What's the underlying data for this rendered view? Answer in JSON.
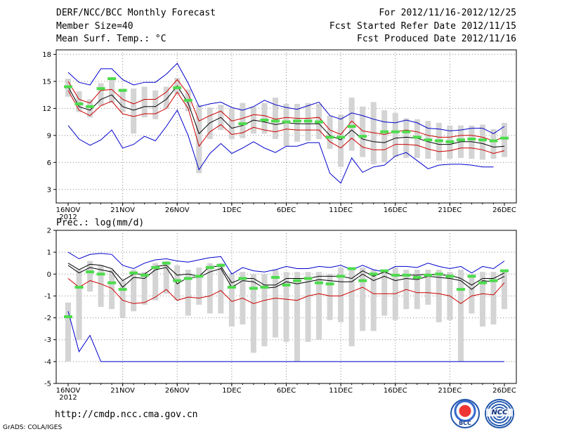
{
  "header": {
    "title": "DERF/NCC/BCC Monthly Forecast",
    "member_size": "Member Size=40",
    "variable": "Mean Surf. Temp.: °C",
    "period": "For 2012/11/16-2012/12/25",
    "start_date": "Fcst Started Refer Date 2012/11/15",
    "produced_date": "Fcst Produced Date 2012/11/16"
  },
  "footer": {
    "url": "http://cmdp.ncc.cma.gov.cn",
    "credit": "GrADS: COLA/IGES",
    "logo_left_text": "BCC",
    "logo_right_text": "NCC"
  },
  "chart_data": [
    {
      "type": "line",
      "title": "Mean Surf. Temp.: °C",
      "xlabel": "",
      "ylabel": "",
      "x_days": 40,
      "x_ticks": [
        {
          "day": 0,
          "label": "16NOV",
          "sub": "2012"
        },
        {
          "day": 5,
          "label": "21NOV"
        },
        {
          "day": 10,
          "label": "26NOV"
        },
        {
          "day": 15,
          "label": "1DEC"
        },
        {
          "day": 20,
          "label": "6DEC"
        },
        {
          "day": 25,
          "label": "11DEC"
        },
        {
          "day": 30,
          "label": "16DEC"
        },
        {
          "day": 35,
          "label": "21DEC"
        },
        {
          "day": 40,
          "label": "26DEC"
        }
      ],
      "ylim": [
        1.5,
        18.5
      ],
      "y_ticks": [
        3,
        6,
        9,
        12,
        15,
        18
      ],
      "series": [
        {
          "name": "max",
          "color": "#0000cc",
          "values": [
            16,
            14.9,
            14.6,
            16.4,
            16.4,
            15.2,
            14.6,
            14.9,
            14.9,
            15.8,
            17,
            14.8,
            12.2,
            12.5,
            12.7,
            12.1,
            11.8,
            12.2,
            12.9,
            12.4,
            12.1,
            11.9,
            12.3,
            12.7,
            11.2,
            10.8,
            11.5,
            11.2,
            10.8,
            10.5,
            10.4,
            10.7,
            10.4,
            9.8,
            9.7,
            9.5,
            9.6,
            9.8,
            9.8,
            9.2,
            10
          ]
        },
        {
          "name": "upper",
          "color": "#cc0000",
          "values": [
            15,
            13,
            12.6,
            14,
            14.1,
            13,
            12.5,
            13,
            13,
            13.8,
            15.2,
            13.6,
            10.6,
            11.2,
            11.7,
            10.6,
            10.9,
            11.3,
            11.2,
            10.8,
            11,
            10.9,
            10.9,
            11,
            9.6,
            9.1,
            10.6,
            9.5,
            9.3,
            9.1,
            9.4,
            9.6,
            9.4,
            9,
            8.8,
            8.8,
            9,
            9,
            8.8,
            8.4,
            8.8
          ]
        },
        {
          "name": "mean",
          "color": "#000000",
          "values": [
            14.4,
            12.2,
            11.8,
            13,
            13.5,
            12.2,
            11.8,
            12.2,
            12.2,
            13,
            14.5,
            12.6,
            9.2,
            10.4,
            11,
            9.8,
            10.1,
            10.7,
            10.5,
            10.2,
            10.4,
            10.3,
            10.3,
            10.3,
            9,
            8.5,
            9.6,
            8.6,
            8.3,
            8.2,
            8.7,
            8.8,
            8.7,
            8.3,
            8,
            8,
            8.3,
            8.3,
            8.1,
            7.7,
            7.8
          ]
        },
        {
          "name": "lower",
          "color": "#cc0000",
          "values": [
            14,
            11.8,
            11.2,
            12.3,
            12.8,
            11.4,
            11.1,
            11.4,
            11.4,
            12,
            13.8,
            12,
            7.8,
            9.4,
            10.2,
            9.1,
            9.3,
            9.9,
            9.6,
            9.4,
            9.7,
            9.6,
            9.6,
            9.6,
            8.3,
            7.6,
            8.7,
            7.7,
            7.4,
            7.4,
            8,
            8,
            7.9,
            7.5,
            7.2,
            7.3,
            7.6,
            7.6,
            7.4,
            7,
            7.3
          ]
        },
        {
          "name": "min",
          "color": "#0000cc",
          "values": [
            10.1,
            8.6,
            7.9,
            8.5,
            9.6,
            7.6,
            8,
            8.9,
            8.4,
            10,
            11.8,
            9,
            5.2,
            7,
            8.1,
            7,
            7.6,
            8.3,
            7.6,
            7.1,
            7.8,
            7.8,
            8.2,
            8.2,
            4.8,
            3.7,
            6.5,
            4.9,
            5.5,
            5.7,
            6.7,
            7.1,
            6.2,
            5.3,
            5.7,
            5.8,
            5.8,
            5.7,
            5.5,
            5.5,
            null
          ]
        }
      ],
      "whiskers_low": [
        13.3,
        11.6,
        11,
        12.3,
        12.6,
        11.6,
        9.2,
        11,
        10.8,
        12,
        13.6,
        11.7,
        4.8,
        8.6,
        9.6,
        8.6,
        8.7,
        9.2,
        9.2,
        8.6,
        7.8,
        8.3,
        8.4,
        8.6,
        7.5,
        5.5,
        7.3,
        6.6,
        5.8,
        6,
        6.6,
        6.5,
        6.5,
        6.4,
        6.2,
        6.4,
        6.5,
        6.4,
        6.3,
        6.4,
        6.6
      ],
      "whiskers_high": [
        15.3,
        13.9,
        13,
        14.8,
        15.2,
        14.2,
        14.2,
        14.4,
        14,
        14.4,
        15.4,
        14.1,
        12.4,
        12.1,
        12.4,
        12,
        12.6,
        12.2,
        12.6,
        13.2,
        12.5,
        12.5,
        12.6,
        12.5,
        11.2,
        11.3,
        13.2,
        12.2,
        12.7,
        11.8,
        11.5,
        10.9,
        10.8,
        10.6,
        10.4,
        10.1,
        10.1,
        10.1,
        10.2,
        9.7,
        10.4
      ],
      "observed": [
        14.4,
        12.5,
        12.2,
        14.2,
        15.3,
        14,
        null,
        null,
        null,
        null,
        14.3,
        12.9,
        null,
        null,
        null,
        null,
        10.3,
        null,
        10.7,
        10.6,
        10.5,
        10.6,
        10.6,
        10.5,
        8.8,
        8.8,
        10,
        8.9,
        null,
        9.4,
        9.4,
        9.4,
        8.8,
        8.5,
        8.4,
        8.3,
        8.5,
        8.6,
        8.5,
        8.4,
        8.7
      ]
    },
    {
      "type": "line",
      "title": "Prec.: log(mm/d)",
      "xlabel": "",
      "ylabel": "",
      "x_days": 40,
      "x_ticks": [
        {
          "day": 0,
          "label": "16NOV",
          "sub": "2012"
        },
        {
          "day": 5,
          "label": "21NOV"
        },
        {
          "day": 10,
          "label": "26NOV"
        },
        {
          "day": 15,
          "label": "1DEC"
        },
        {
          "day": 20,
          "label": "6DEC"
        },
        {
          "day": 25,
          "label": "11DEC"
        },
        {
          "day": 30,
          "label": "16DEC"
        },
        {
          "day": 35,
          "label": "21DEC"
        },
        {
          "day": 40,
          "label": "26DEC"
        }
      ],
      "ylim": [
        -5,
        2
      ],
      "y_ticks": [
        -5,
        -4,
        -3,
        -2,
        -1,
        0,
        1,
        2
      ],
      "series": [
        {
          "name": "max",
          "color": "#0000cc",
          "values": [
            1,
            0.7,
            0.9,
            0.95,
            0.9,
            0.4,
            0.25,
            0.5,
            0.65,
            0.7,
            0.6,
            0.55,
            0.65,
            0.75,
            0.8,
            0,
            0.3,
            0.15,
            0.1,
            0.2,
            0.35,
            0.25,
            0.25,
            0.35,
            0.3,
            0.4,
            0.2,
            0.4,
            0.2,
            0.1,
            0.35,
            0.35,
            0.3,
            0.5,
            0.35,
            0.25,
            0.35,
            0.05,
            0.35,
            0.25,
            0.6
          ]
        },
        {
          "name": "upper",
          "color": "#000000",
          "values": [
            0.5,
            0.2,
            0.45,
            0.4,
            0.25,
            -0.3,
            0,
            0,
            0.35,
            0.4,
            -0.05,
            0,
            -0.1,
            0.35,
            0.35,
            -0.4,
            -0.2,
            -0.2,
            -0.5,
            -0.5,
            -0.2,
            -0.2,
            -0.2,
            -0.1,
            -0.1,
            -0.1,
            -0.2,
            0.15,
            -0.1,
            0.1,
            -0.1,
            -0.05,
            -0.05,
            0,
            -0.05,
            -0.05,
            -0.2,
            -0.5,
            -0.2,
            -0.2,
            0.05
          ]
        },
        {
          "name": "mean",
          "color": "#000000",
          "values": [
            0.4,
            0.05,
            0.3,
            0.2,
            0.1,
            -0.6,
            -0.15,
            -0.2,
            0.2,
            0.3,
            -0.45,
            -0.15,
            -0.15,
            0.1,
            0.25,
            -0.6,
            -0.3,
            -0.35,
            -0.65,
            -0.6,
            -0.35,
            -0.45,
            -0.35,
            -0.25,
            -0.3,
            -0.35,
            -0.35,
            0,
            -0.3,
            -0.1,
            -0.3,
            -0.2,
            -0.25,
            -0.1,
            -0.15,
            -0.2,
            -0.3,
            -0.7,
            -0.3,
            -0.35,
            -0.1
          ]
        },
        {
          "name": "lower",
          "color": "#cc0000",
          "values": [
            -0.2,
            -0.6,
            -0.3,
            -0.45,
            -0.65,
            -1.2,
            -1.35,
            -1.3,
            -1.05,
            -0.7,
            -1.2,
            -1.05,
            -1.1,
            -1,
            -0.75,
            -1.25,
            -1.1,
            -1.35,
            -1.2,
            -1.1,
            -1.15,
            -1.2,
            -1,
            -0.9,
            -1,
            -1,
            -0.8,
            -0.6,
            -0.9,
            -0.9,
            -0.9,
            -0.7,
            -0.85,
            -0.85,
            -0.9,
            -1,
            -1.35,
            -1,
            -0.9,
            -0.95,
            -0.4
          ]
        },
        {
          "name": "min",
          "color": "#0000cc",
          "values": [
            -1.7,
            -3.55,
            -2.8,
            -4,
            -4,
            -4,
            -4,
            -4,
            -4,
            -4,
            -4,
            -4,
            -4,
            -4,
            -4,
            -4,
            -4,
            -4,
            -4,
            -4,
            -4,
            -4,
            -4,
            -4,
            -4,
            -4,
            -4,
            -4,
            -4,
            -4,
            -4,
            -4,
            -4,
            -4,
            -4,
            -4,
            -4,
            -4,
            -4,
            -4,
            -4
          ]
        }
      ],
      "whiskers_low": [
        -4,
        -3,
        -0.8,
        -1.5,
        -1.6,
        -2,
        -1.7,
        -1.4,
        -1.2,
        -0.9,
        -1.2,
        -1.9,
        -1.4,
        -1.8,
        -1.8,
        -2.4,
        -2.3,
        -3.6,
        -3.3,
        -2.9,
        -3.1,
        -4,
        -3.1,
        -3,
        -2.1,
        -2.2,
        -3.3,
        -2.6,
        -2.6,
        -1.9,
        -2.1,
        -1.6,
        -1.6,
        -1.4,
        -2.2,
        -2.1,
        -4,
        -1.8,
        -2.4,
        -2.3,
        -1.6
      ],
      "whiskers_high": [
        -1.3,
        0.2,
        0.6,
        0.4,
        0.2,
        -0.3,
        0.2,
        0.1,
        0.5,
        0.6,
        0.4,
        0.2,
        0.3,
        0.5,
        0.5,
        0,
        0.1,
        0,
        0,
        0.2,
        0.1,
        0.1,
        0.1,
        0.1,
        0,
        0.3,
        0.2,
        0.3,
        0.2,
        0.1,
        0.3,
        0.2,
        0.2,
        0.2,
        0.2,
        0.1,
        0.2,
        0,
        0.1,
        0.1,
        0.2
      ],
      "observed": [
        -1.95,
        -0.6,
        0.1,
        0,
        -0.4,
        -0.7,
        0.05,
        -0.05,
        0.3,
        0.5,
        -0.3,
        -0.2,
        -0.1,
        0.3,
        0.4,
        -0.6,
        -0.2,
        -0.65,
        -0.6,
        -0.15,
        -0.5,
        -0.3,
        -0.2,
        -0.4,
        -0.45,
        -0.1,
        0.25,
        -0.3,
        0,
        0.15,
        -0.05,
        -0.05,
        -0.15,
        -0.05,
        0,
        -0.1,
        -0.7,
        -0.1,
        -0.4,
        -0.3,
        0.15
      ]
    }
  ]
}
